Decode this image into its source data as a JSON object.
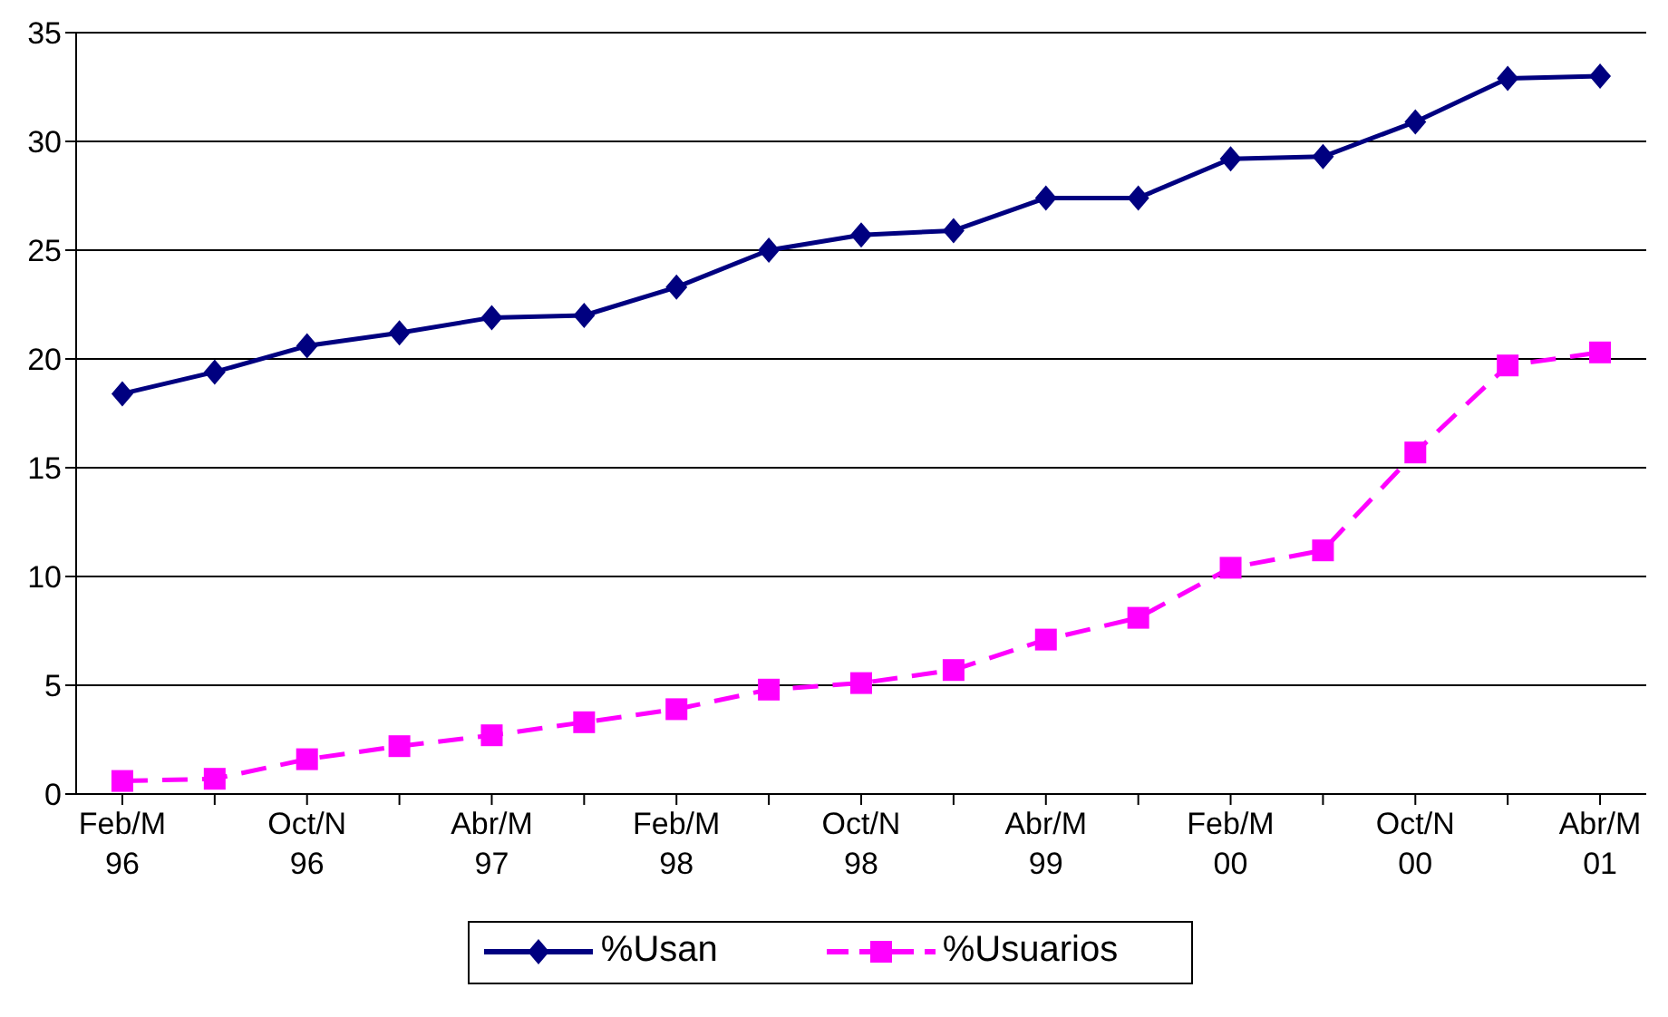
{
  "chart_data": {
    "type": "line",
    "categories": [
      "Feb/M\n96",
      null,
      "Oct/N\n96",
      null,
      "Abr/M\n97",
      null,
      "Feb/M\n98",
      null,
      "Oct/N\n98",
      null,
      "Abr/M\n99",
      null,
      "Feb/M\n00",
      null,
      "Oct/N\n00",
      null,
      "Abr/M\n01"
    ],
    "series": [
      {
        "name": "%Usan",
        "color": "#000080",
        "marker": "diamond",
        "line_style": "solid",
        "values": [
          18.4,
          19.4,
          20.6,
          21.2,
          21.9,
          22.0,
          23.3,
          25.0,
          25.7,
          25.9,
          27.4,
          27.4,
          29.2,
          29.3,
          30.9,
          32.9,
          33.0
        ]
      },
      {
        "name": "%Usuarios",
        "color": "#ff00ff",
        "marker": "square",
        "line_style": "dashed",
        "values": [
          0.6,
          0.7,
          1.6,
          2.2,
          2.7,
          3.3,
          3.9,
          4.8,
          5.1,
          5.7,
          7.1,
          8.1,
          10.4,
          11.2,
          15.7,
          19.7,
          20.3
        ]
      }
    ],
    "ylim": [
      0,
      35
    ],
    "yticks": [
      0,
      5,
      10,
      15,
      20,
      25,
      30,
      35
    ],
    "grid": "y",
    "legend": "bottom"
  }
}
